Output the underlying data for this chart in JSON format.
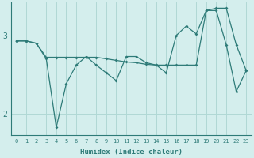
{
  "xlabel": "Humidex (Indice chaleur)",
  "bg_color": "#d4eeed",
  "line_color": "#2e7b78",
  "grid_color": "#b0d8d5",
  "x_ticks": [
    0,
    1,
    2,
    3,
    4,
    5,
    6,
    7,
    8,
    9,
    10,
    11,
    12,
    13,
    14,
    15,
    16,
    17,
    18,
    19,
    20,
    21,
    22,
    23
  ],
  "y_ticks": [
    2,
    3
  ],
  "ylim": [
    1.72,
    3.42
  ],
  "xlim": [
    -0.5,
    23.5
  ],
  "line1_y": [
    2.93,
    2.93,
    2.9,
    2.7,
    1.82,
    2.38,
    2.62,
    2.73,
    2.62,
    2.52,
    2.42,
    2.73,
    2.73,
    2.65,
    2.62,
    2.52,
    3.0,
    3.12,
    3.02,
    3.32,
    3.32,
    2.88,
    2.28,
    2.55
  ],
  "line2_y": [
    2.93,
    2.93,
    2.9,
    2.72,
    2.72,
    2.72,
    2.72,
    2.72,
    2.72,
    2.7,
    2.68,
    2.66,
    2.65,
    2.63,
    2.62,
    2.62,
    2.62,
    2.62,
    2.62,
    3.32,
    3.35,
    3.35,
    2.88,
    2.55
  ]
}
